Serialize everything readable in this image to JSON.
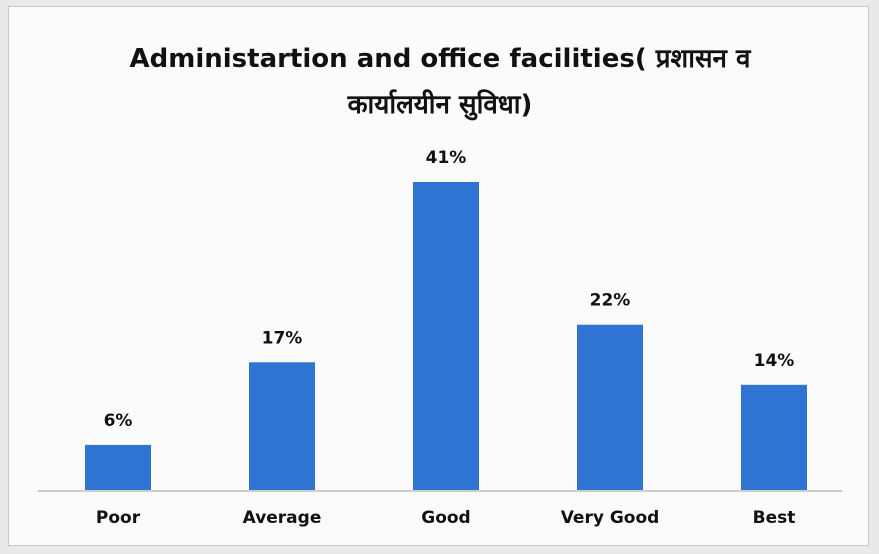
{
  "chart_data": {
    "type": "bar",
    "title": "Administartion and office facilities( प्रशासन व कार्यालयीन सुविधा)",
    "categories": [
      "Poor",
      "Average",
      "Good",
      "Very Good",
      "Best"
    ],
    "values": [
      6,
      17,
      41,
      22,
      14
    ],
    "value_labels": [
      "6%",
      "17%",
      "41%",
      "22%",
      "14%"
    ],
    "color": "#2f73d3"
  }
}
